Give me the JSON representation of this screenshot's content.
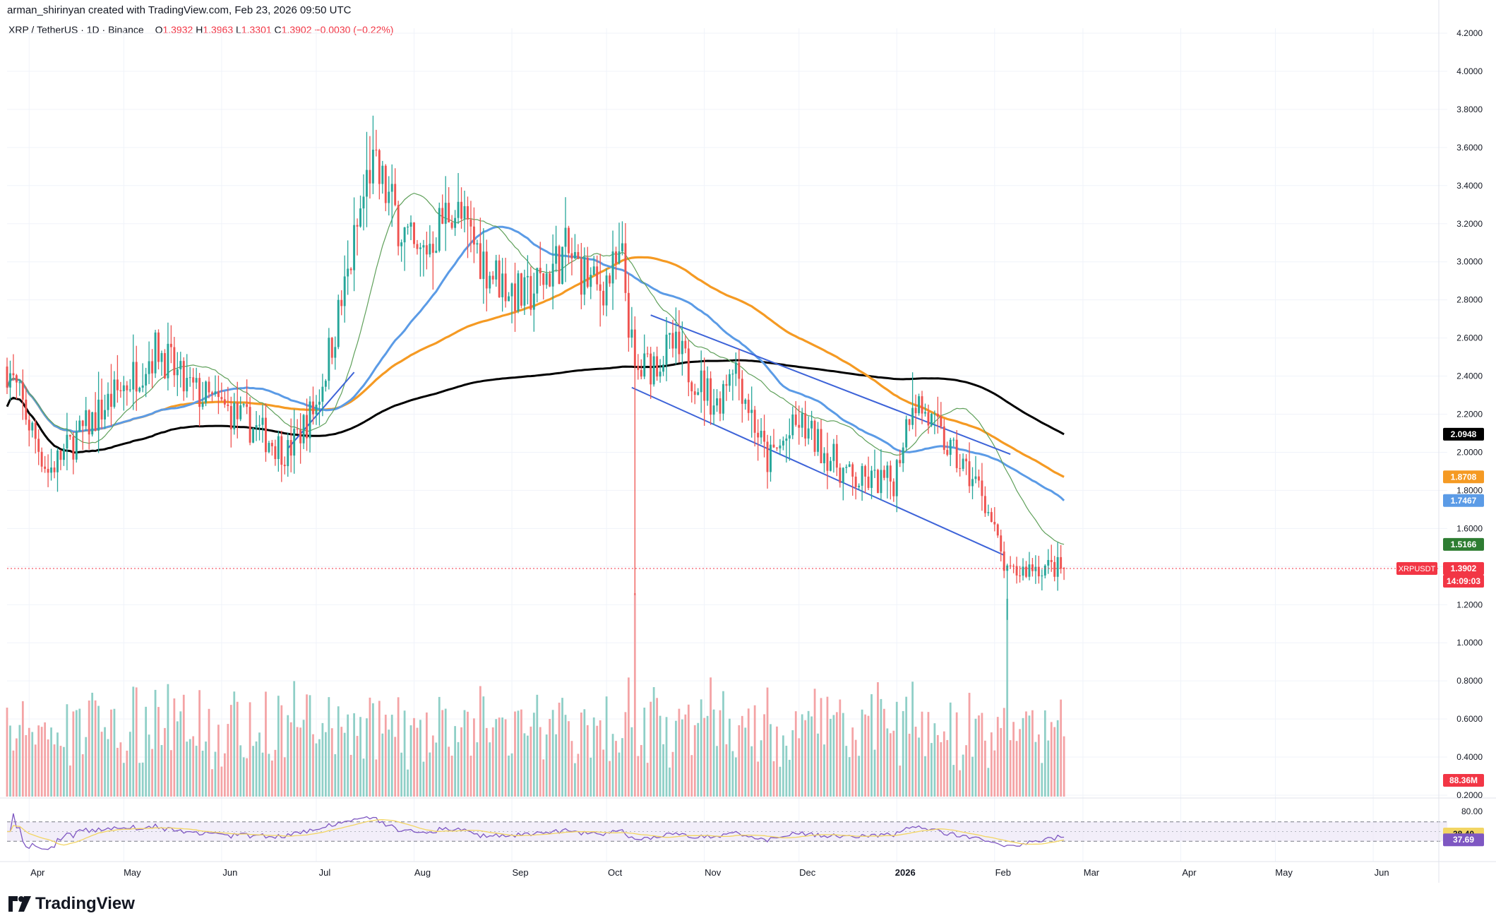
{
  "header": {
    "created_by": "arman_shirinyan created with TradingView.com, Feb 23, 2026 09:50 UTC",
    "symbol": "XRP / TetherUS · 1D · Binance",
    "open_label": "O",
    "open": "1.3932",
    "high_label": "H",
    "high": "1.3963",
    "low_label": "L",
    "low": "1.3301",
    "close_label": "C",
    "close": "1.3902",
    "change": "−0.0030 (−0.22%)"
  },
  "brand": "TradingView",
  "colors": {
    "up": "#26a69a",
    "down": "#ef5350",
    "up_volume": "#8fcfc7",
    "down_volume": "#f4a3a5",
    "ma200": "#000000",
    "ma100": "#f59a23",
    "ma50": "#5b9be6",
    "ma20": "#5fa05a",
    "channel": "#3d63d8",
    "rsi": "#7e57c2",
    "rsi_ma": "#f2d563",
    "rsi_band": "#ede7f6"
  },
  "chart_data": {
    "type": "candlestick",
    "title": "XRP / TetherUS · 1D · Binance",
    "y_axis": {
      "ticks": [
        "4.2000",
        "4.0000",
        "3.8000",
        "3.6000",
        "3.4000",
        "3.2000",
        "3.0000",
        "2.8000",
        "2.6000",
        "2.4000",
        "2.2000",
        "2.0000",
        "1.8000",
        "1.6000",
        "1.4000",
        "1.2000",
        "1.0000",
        "0.8000",
        "0.6000",
        "0.4000",
        "0.2000"
      ],
      "range": [
        0.2,
        4.2
      ]
    },
    "x_axis": {
      "ticks": [
        "Apr",
        "May",
        "Jun",
        "Jul",
        "Aug",
        "Sep",
        "Oct",
        "Nov",
        "Dec",
        "2026",
        "Feb",
        "Mar",
        "Apr",
        "May",
        "Jun"
      ],
      "range": [
        "2025-03-25",
        "2026-06-20"
      ]
    },
    "price_path_keypoints": [
      [
        "2025-03-25",
        2.45
      ],
      [
        "2025-04-07",
        1.9
      ],
      [
        "2025-04-20",
        2.15
      ],
      [
        "2025-05-12",
        2.55
      ],
      [
        "2025-05-20",
        2.35
      ],
      [
        "2025-06-05",
        2.2
      ],
      [
        "2025-06-22",
        2.0
      ],
      [
        "2025-07-01",
        2.25
      ],
      [
        "2025-07-10",
        2.85
      ],
      [
        "2025-07-18",
        3.5
      ],
      [
        "2025-07-22",
        3.4
      ],
      [
        "2025-08-02",
        3.0
      ],
      [
        "2025-08-13",
        3.3
      ],
      [
        "2025-08-25",
        2.95
      ],
      [
        "2025-09-05",
        2.8
      ],
      [
        "2025-09-18",
        3.05
      ],
      [
        "2025-09-28",
        2.85
      ],
      [
        "2025-10-06",
        3.0
      ],
      [
        "2025-10-10",
        2.4
      ],
      [
        "2025-10-22",
        2.55
      ],
      [
        "2025-11-05",
        2.25
      ],
      [
        "2025-11-10",
        2.5
      ],
      [
        "2025-11-21",
        1.95
      ],
      [
        "2025-12-01",
        2.15
      ],
      [
        "2025-12-18",
        1.85
      ],
      [
        "2025-12-31",
        1.85
      ],
      [
        "2026-01-06",
        2.3
      ],
      [
        "2026-01-18",
        2.0
      ],
      [
        "2026-01-28",
        1.8
      ],
      [
        "2026-02-05",
        1.35
      ],
      [
        "2026-02-13",
        1.4
      ],
      [
        "2026-02-23",
        1.39
      ]
    ],
    "notable_wicks": [
      {
        "date": "2025-10-10",
        "low": 1.25
      },
      {
        "date": "2026-02-05",
        "low": 1.12
      },
      {
        "date": "2025-07-18",
        "high": 3.66
      },
      {
        "date": "2026-01-06",
        "high": 2.42
      }
    ],
    "moving_averages": [
      {
        "key": "ma200",
        "last_value": "2.0948",
        "label_color": "#000000"
      },
      {
        "key": "ma100",
        "last_value": "1.8708",
        "label_color": "#f59a23"
      },
      {
        "key": "ma50",
        "last_value": "1.7467",
        "label_color": "#5b9be6"
      },
      {
        "key": "ma20",
        "last_value": "1.5166",
        "label_color": "#2e7d32"
      }
    ],
    "price_label": {
      "symbol": "XRPUSDT",
      "value": "1.3902",
      "countdown": "14:09:03"
    },
    "volume": {
      "last": "88.36M"
    },
    "rsi": {
      "ticks": [
        "80.00"
      ],
      "value": "38.40",
      "ma_value": "37.69",
      "upper": 70,
      "lower": 30
    }
  }
}
